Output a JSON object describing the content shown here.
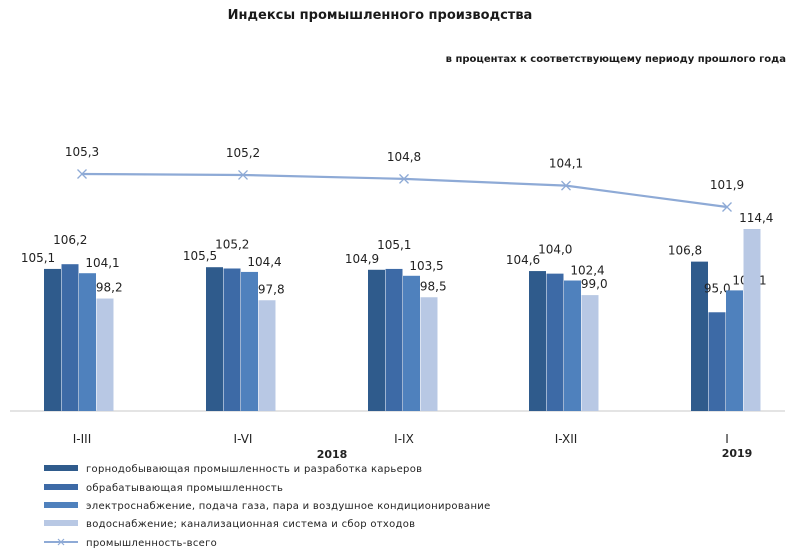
{
  "chart_data": {
    "type": "bar",
    "title": "Индексы промышленного производства",
    "subtitle": "в процентах к соответствующему периоду прошлого года",
    "categories": [
      "I-III",
      "I-VI",
      "I-IX",
      "I-XII",
      "I"
    ],
    "year_labels": [
      "2018",
      "2019"
    ],
    "series": [
      {
        "name": "горнодобывающая промышленность и разработка карьеров",
        "values": [
          105.1,
          105.5,
          104.9,
          104.6,
          106.8
        ],
        "labels": [
          "105,1",
          "105,5",
          "104,9",
          "104,6",
          "106,8"
        ],
        "color": "#2f5b8c"
      },
      {
        "name": "обрабатывающая промышленность",
        "values": [
          106.2,
          105.2,
          105.1,
          104.0,
          95.0
        ],
        "labels": [
          "106,2",
          "105,2",
          "105,1",
          "104,0",
          "95,0"
        ],
        "color": "#3d6aa6"
      },
      {
        "name": "электроснабжение, подача газа, пара и воздушное кондиционирование",
        "values": [
          104.1,
          104.4,
          103.5,
          102.4,
          100.1
        ],
        "labels": [
          "104,1",
          "104,4",
          "103,5",
          "102,4",
          "100,1"
        ],
        "color": "#4f81bd"
      },
      {
        "name": "водоснабжение; канализационная система и сбор отходов",
        "values": [
          98.2,
          97.8,
          98.5,
          99.0,
          114.4
        ],
        "labels": [
          "98,2",
          "97,8",
          "98,5",
          "99,0",
          "114,4"
        ],
        "color": "#b8c8e4"
      }
    ],
    "line_series": {
      "name": "промышленность-всего",
      "values": [
        105.3,
        105.2,
        104.8,
        104.1,
        101.9
      ],
      "labels": [
        "105,3",
        "105,2",
        "104,8",
        "104,1",
        "101,9"
      ],
      "color": "#8eaad6"
    },
    "ylim": [
      72,
      120
    ],
    "grid": false,
    "legend": "bottom"
  }
}
